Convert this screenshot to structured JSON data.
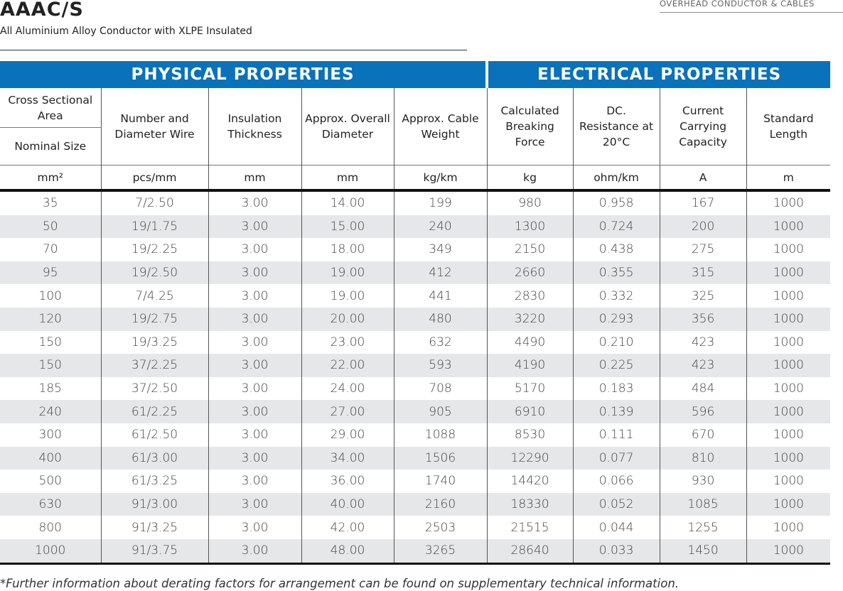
{
  "header": {
    "title": "AAAC/S",
    "subtitle": "All Aluminium Alloy Conductor with XLPE Insulated",
    "category": "OVERHEAD CONDUCTOR & CABLES"
  },
  "table": {
    "groups": [
      "PHYSICAL PROPERTIES",
      "ELECTRICAL PROPERTIES"
    ],
    "first_column": [
      "Cross Sectional Area",
      "Nominal Size"
    ],
    "columns": [
      "Number and Diameter Wire",
      "Insulation Thickness",
      "Approx. Overall Diameter",
      "Approx. Cable Weight",
      "Calculated Breaking Force",
      "DC. Resistance at 20°C",
      "Current Carrying Capacity",
      "Standard Length"
    ],
    "units": [
      "mm²",
      "pcs/mm",
      "mm",
      "mm",
      "kg/km",
      "kg",
      "ohm/km",
      "A",
      "m"
    ],
    "rows": [
      [
        "35",
        "7/2.50",
        "3.00",
        "14.00",
        "199",
        "980",
        "0.958",
        "167",
        "1000"
      ],
      [
        "50",
        "19/1.75",
        "3.00",
        "15.00",
        "240",
        "1300",
        "0.724",
        "200",
        "1000"
      ],
      [
        "70",
        "19/2.25",
        "3.00",
        "18.00",
        "349",
        "2150",
        "0.438",
        "275",
        "1000"
      ],
      [
        "95",
        "19/2.50",
        "3.00",
        "19.00",
        "412",
        "2660",
        "0.355",
        "315",
        "1000"
      ],
      [
        "100",
        "7/4.25",
        "3.00",
        "19.00",
        "441",
        "2830",
        "0.332",
        "325",
        "1000"
      ],
      [
        "120",
        "19/2.75",
        "3.00",
        "20.00",
        "480",
        "3220",
        "0.293",
        "356",
        "1000"
      ],
      [
        "150",
        "19/3.25",
        "3.00",
        "23.00",
        "632",
        "4490",
        "0.210",
        "423",
        "1000"
      ],
      [
        "150",
        "37/2.25",
        "3.00",
        "22.00",
        "593",
        "4190",
        "0.225",
        "423",
        "1000"
      ],
      [
        "185",
        "37/2.50",
        "3.00",
        "24.00",
        "708",
        "5170",
        "0.183",
        "484",
        "1000"
      ],
      [
        "240",
        "61/2.25",
        "3.00",
        "27.00",
        "905",
        "6910",
        "0.139",
        "596",
        "1000"
      ],
      [
        "300",
        "61/2.50",
        "3.00",
        "29.00",
        "1088",
        "8530",
        "0.111",
        "670",
        "1000"
      ],
      [
        "400",
        "61/3.00",
        "3.00",
        "34.00",
        "1506",
        "12290",
        "0.077",
        "810",
        "1000"
      ],
      [
        "500",
        "61/3.25",
        "3.00",
        "36.00",
        "1740",
        "14420",
        "0.066",
        "930",
        "1000"
      ],
      [
        "630",
        "91/3.00",
        "3.00",
        "40.00",
        "2160",
        "18330",
        "0.052",
        "1085",
        "1000"
      ],
      [
        "800",
        "91/3.25",
        "3.00",
        "42.00",
        "2503",
        "21515",
        "0.044",
        "1255",
        "1000"
      ],
      [
        "1000",
        "91/3.75",
        "3.00",
        "48.00",
        "3265",
        "28640",
        "0.033",
        "1450",
        "1000"
      ]
    ]
  },
  "footnote": "*Further information about derating factors for arrangement can be found on supplementary technical information."
}
